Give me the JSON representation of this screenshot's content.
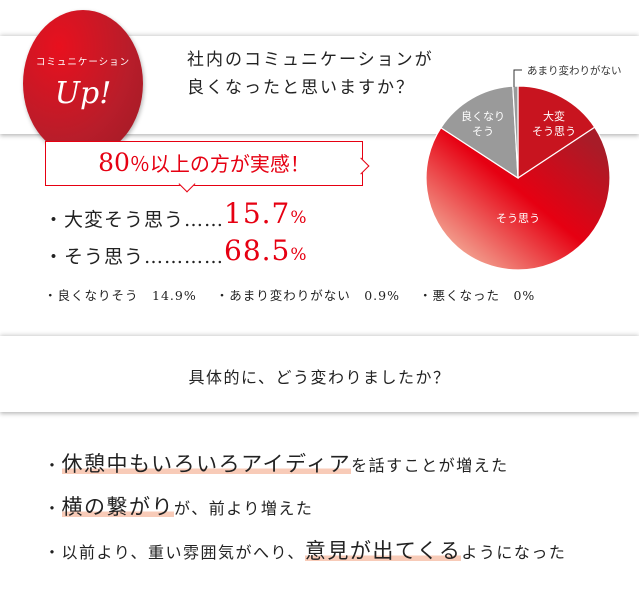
{
  "badge": {
    "label": "コミュニケーション",
    "up": "Up!"
  },
  "header": {
    "question_line1": "社内のコミュニケーションが",
    "question_line2": "良くなったと思いますか？"
  },
  "callout": {
    "number": "80",
    "rest": "％以上の方が実感！"
  },
  "results": [
    {
      "label": "・大変そう思う……",
      "value": "15.7",
      "unit": "%"
    },
    {
      "label": "・そう思う…………",
      "value": "68.5",
      "unit": "%"
    }
  ],
  "minor": [
    "・良くなりそう　14.9%",
    "・あまり変わりがない　0.9%",
    "・悪くなった　0%"
  ],
  "chart_data": {
    "type": "pie",
    "slices": [
      {
        "label": "大変そう思う",
        "value": 15.7,
        "color": "#c8141f"
      },
      {
        "label": "そう思う",
        "value": 68.5,
        "color": "#e60012"
      },
      {
        "label": "良くなりそう",
        "value": 14.9,
        "color": "#9a9a9a"
      },
      {
        "label": "あまり変わりがない",
        "value": 0.9,
        "color": "#9a9a9a"
      }
    ],
    "slice_labels": {
      "s0a": "大変",
      "s0b": "そう思う",
      "s1": "そう思う",
      "s2a": "良くなり",
      "s2b": "そう",
      "s3": "あまり変わりがない"
    }
  },
  "section2": {
    "question": "具体的に、どう変わりましたか？",
    "points": [
      {
        "bullet": "・",
        "highlight": "休憩中もいろいろアイディア",
        "after": "を話すことが増えた"
      },
      {
        "bullet": "・",
        "highlight": "横の繋がり",
        "after": "が、前より増えた"
      },
      {
        "bullet": "・",
        "before": "以前より、重い雰囲気がへり、",
        "highlight": "意見が出てくる",
        "after": "ようになった"
      }
    ]
  }
}
